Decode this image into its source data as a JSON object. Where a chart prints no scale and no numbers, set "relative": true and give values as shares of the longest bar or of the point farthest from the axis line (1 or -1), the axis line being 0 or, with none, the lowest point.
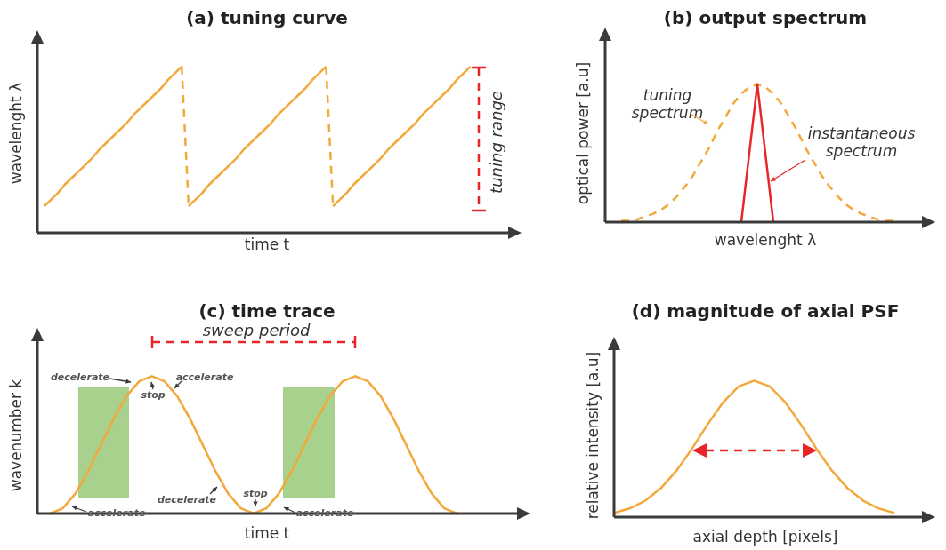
{
  "chart_data": [
    {
      "type": "line",
      "title": "(a) tuning curve",
      "xlabel": "time t",
      "ylabel": "wavelenght λ",
      "relative": true,
      "annotations": [
        "tuning range"
      ],
      "categories": [
        null,
        null,
        null,
        null,
        null,
        null,
        null,
        null,
        null,
        null,
        null,
        null,
        null,
        null,
        null,
        null,
        null,
        null,
        null,
        null,
        null,
        null,
        null,
        null,
        null,
        null,
        null,
        null,
        null,
        null,
        null,
        null,
        null,
        null,
        null,
        null,
        null,
        null,
        null,
        null,
        null,
        null,
        null,
        null,
        null,
        null,
        null,
        null,
        null,
        null,
        null,
        null,
        null,
        null,
        null,
        null,
        null,
        null,
        null,
        null,
        null,
        null,
        null,
        null,
        null,
        null,
        null,
        null,
        null,
        null
      ],
      "series": [
        {
          "color": "#f3a83b",
          "line_style": "solid",
          "values": [
            null,
            0.16,
            0.2,
            0.24,
            0.29,
            0.33,
            0.37,
            0.41,
            0.45,
            0.5,
            0.54,
            0.58,
            0.62,
            0.66,
            0.71,
            0.75,
            0.79,
            0.83,
            0.87,
            0.92,
            0.96,
            1,
            null,
            null,
            null,
            null,
            null,
            null,
            null,
            null,
            null,
            null,
            null,
            null,
            null,
            null,
            null,
            null,
            null,
            null,
            null,
            null,
            null,
            null,
            null,
            null,
            null,
            null,
            null,
            null,
            null,
            null,
            null,
            null,
            null,
            null,
            null,
            null,
            null,
            null,
            null,
            null,
            null,
            null,
            null,
            null,
            null,
            null,
            null,
            null
          ]
        },
        {
          "color": "#f3a83b",
          "line_style": "solid",
          "values": [
            null,
            null,
            null,
            null,
            null,
            null,
            null,
            null,
            null,
            null,
            null,
            null,
            null,
            null,
            null,
            null,
            null,
            null,
            null,
            null,
            null,
            null,
            0.16,
            0.2,
            0.24,
            0.29,
            0.33,
            0.37,
            0.41,
            0.45,
            0.5,
            0.54,
            0.58,
            0.62,
            0.66,
            0.71,
            0.75,
            0.79,
            0.83,
            0.87,
            0.92,
            0.96,
            1,
            null,
            null,
            null,
            null,
            null,
            null,
            null,
            null,
            null,
            null,
            null,
            null,
            null,
            null,
            null,
            null,
            null,
            null,
            null,
            null,
            null,
            null,
            null,
            null,
            null,
            null,
            null
          ]
        },
        {
          "color": "#f3a83b",
          "line_style": "solid",
          "values": [
            null,
            null,
            null,
            null,
            null,
            null,
            null,
            null,
            null,
            null,
            null,
            null,
            null,
            null,
            null,
            null,
            null,
            null,
            null,
            null,
            null,
            null,
            null,
            null,
            null,
            null,
            null,
            null,
            null,
            null,
            null,
            null,
            null,
            null,
            null,
            null,
            null,
            null,
            null,
            null,
            null,
            null,
            null,
            0.16,
            0.2,
            0.24,
            0.29,
            0.33,
            0.37,
            0.41,
            0.45,
            0.5,
            0.54,
            0.58,
            0.62,
            0.66,
            0.71,
            0.75,
            0.79,
            0.83,
            0.87,
            0.92,
            0.96,
            1,
            null,
            null,
            null,
            null,
            null,
            null
          ]
        },
        {
          "color": "#f3a83b",
          "line_style": "dashed",
          "values": [
            null,
            null,
            null,
            null,
            null,
            null,
            null,
            null,
            null,
            null,
            null,
            null,
            null,
            null,
            null,
            null,
            null,
            null,
            null,
            null,
            null,
            1,
            0.16,
            null,
            null,
            null,
            null,
            null,
            null,
            null,
            null,
            null,
            null,
            null,
            null,
            null,
            null,
            null,
            null,
            null,
            null,
            null,
            1,
            0.16,
            null,
            null,
            null,
            null,
            null,
            null,
            null,
            null,
            null,
            null,
            null,
            null,
            null,
            null,
            null,
            null,
            null,
            null,
            null,
            null,
            null,
            null,
            null,
            null,
            null,
            null
          ]
        }
      ]
    },
    {
      "type": "line",
      "title": "(b) output spectrum",
      "xlabel": "wavelenght λ",
      "ylabel": "optical power [a.u]",
      "relative": true,
      "annotations": [
        "tuning spectrum",
        "instantaneous spectrum"
      ],
      "categories": [
        null,
        null,
        null,
        null,
        null,
        null,
        null,
        null,
        null,
        null,
        null,
        null,
        null,
        null,
        null,
        null,
        null,
        null,
        null,
        null,
        null,
        null,
        null,
        null,
        null,
        null,
        null,
        null,
        null,
        null,
        null,
        null,
        null,
        null,
        null,
        null,
        null,
        null,
        null,
        null,
        null
      ],
      "series": [
        {
          "color": "#f3a83b",
          "line_style": "dashed",
          "values": [
            null,
            null,
            0.01,
            0.01,
            0.02,
            0.04,
            0.06,
            0.09,
            0.13,
            0.19,
            0.26,
            0.34,
            0.44,
            0.54,
            0.66,
            0.76,
            0.86,
            0.93,
            0.98,
            1,
            0.98,
            0.93,
            0.86,
            0.76,
            0.66,
            0.54,
            0.44,
            0.34,
            0.26,
            0.19,
            0.13,
            0.09,
            0.06,
            0.04,
            0.02,
            0.01,
            0.01,
            null,
            null,
            null,
            null
          ]
        },
        {
          "color": "#e8262a",
          "line_style": "solid",
          "values": [
            null,
            null,
            null,
            null,
            null,
            null,
            null,
            null,
            null,
            null,
            null,
            null,
            null,
            null,
            null,
            null,
            null,
            0,
            0.5,
            1,
            0.5,
            0,
            null,
            null,
            null,
            null,
            null,
            null,
            null,
            null,
            null,
            null,
            null,
            null,
            null,
            null,
            null,
            null,
            null,
            null,
            null
          ]
        }
      ]
    },
    {
      "type": "line",
      "title": "(c) time trace",
      "xlabel": "time t",
      "ylabel": "wavenumber k",
      "relative": true,
      "annotations": [
        "sweep period",
        "decelerate",
        "stop",
        "accelerate",
        "decelerate",
        "stop",
        "accelerate",
        "accelerate"
      ],
      "categories": [
        null,
        null,
        null,
        null,
        null,
        null,
        null,
        null,
        null,
        null,
        null,
        null,
        null,
        null,
        null,
        null,
        null,
        null,
        null,
        null,
        null,
        null,
        null,
        null,
        null,
        null,
        null,
        null,
        null,
        null,
        null,
        null,
        null,
        null,
        null,
        null,
        null,
        null,
        null
      ],
      "series": [
        {
          "color": "#f3a83b",
          "line_style": "solid",
          "values": [
            null,
            0,
            0.038,
            0.146,
            0.309,
            0.5,
            0.691,
            0.854,
            0.962,
            1,
            0.962,
            0.854,
            0.691,
            0.5,
            0.309,
            0.146,
            0.038,
            0,
            0.038,
            0.146,
            0.309,
            0.5,
            0.691,
            0.854,
            0.962,
            1,
            0.962,
            0.854,
            0.691,
            0.5,
            0.309,
            0.146,
            0.038,
            0,
            null,
            null,
            null,
            null,
            null
          ]
        }
      ]
    },
    {
      "type": "line",
      "title": "(d) magnitude of axial PSF",
      "xlabel": "axial depth [pixels]",
      "ylabel": "relative intensity [a.u]",
      "relative": true,
      "categories": [
        null,
        null,
        null,
        null,
        null,
        null,
        null,
        null,
        null,
        null,
        null,
        null,
        null,
        null,
        null,
        null,
        null,
        null,
        null,
        null,
        null
      ],
      "series": [
        {
          "color": "#f3a83b",
          "line_style": "solid",
          "values": [
            0.03,
            0.063,
            0.12,
            0.211,
            0.339,
            0.5,
            0.678,
            0.841,
            0.958,
            1,
            0.958,
            0.841,
            0.678,
            0.5,
            0.339,
            0.211,
            0.12,
            0.063,
            0.03,
            null,
            null
          ]
        }
      ]
    }
  ]
}
